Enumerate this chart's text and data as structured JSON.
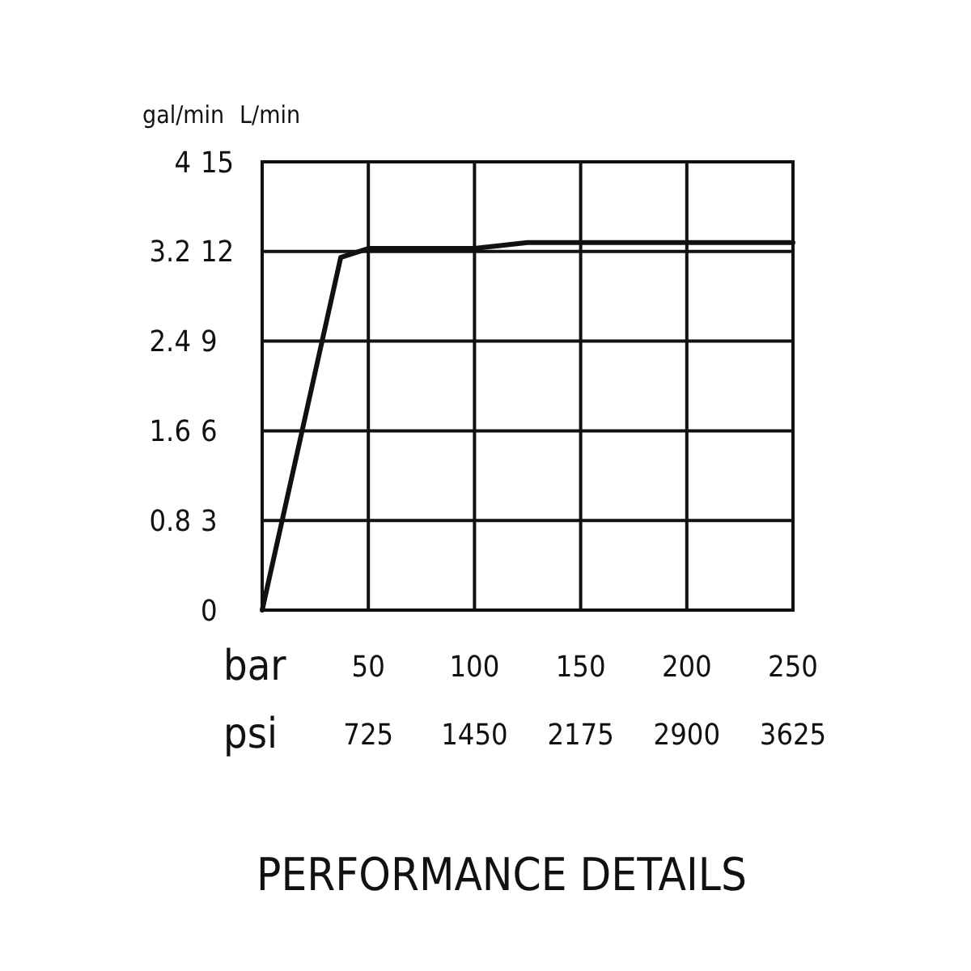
{
  "chart_data": {
    "type": "line",
    "title": "PERFORMANCE DETAILS",
    "xlabel": "bar",
    "x2label": "psi",
    "ylabel": "L/min",
    "y2label": "gal/min",
    "x": [
      0,
      37,
      50,
      100,
      125,
      250
    ],
    "series": [
      {
        "color": "#111111",
        "values": [
          0,
          11.8,
          12.1,
          12.1,
          12.3,
          12.3
        ]
      }
    ],
    "xlim": [
      0,
      250
    ],
    "xticks": [
      50,
      100,
      150,
      200,
      250
    ],
    "x2lim": [
      0,
      3625
    ],
    "x2ticks": [
      725,
      1450,
      2175,
      2900,
      3625
    ],
    "ylim": [
      0,
      15
    ],
    "yticks": [
      0,
      3,
      6,
      9,
      12,
      15
    ],
    "y2lim": [
      0,
      4
    ],
    "y2ticks": [
      0.8,
      1.6,
      2.4,
      3.2,
      4
    ],
    "grid": true,
    "marker": "none",
    "line_style": "solid"
  }
}
